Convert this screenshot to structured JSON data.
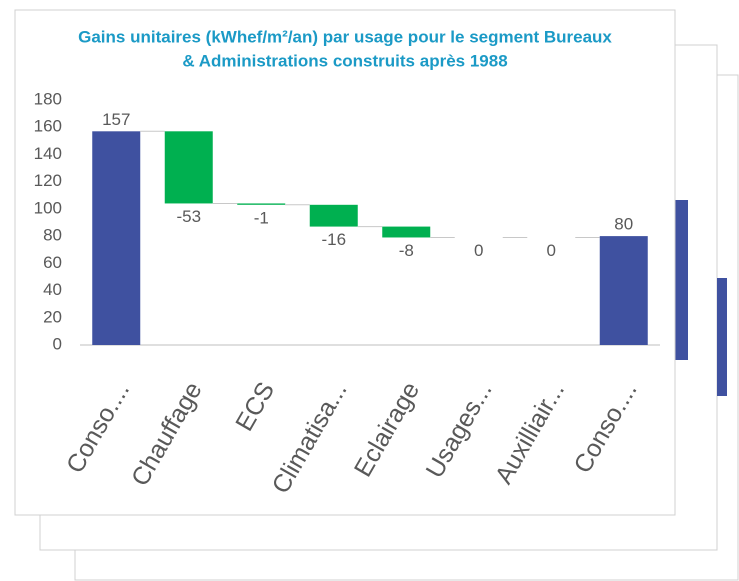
{
  "chart_data": {
    "type": "waterfall",
    "title": [
      "Gains unitaires (kWhef/m²/an) par usage pour le segment Bureaux",
      "& Administrations construits après 1988"
    ],
    "categories": [
      "Conso....",
      "Chauffage",
      "ECS",
      "Climatisa...",
      "Eclairage",
      "Usages...",
      "Auxilliair...",
      "Conso...."
    ],
    "values": [
      157,
      -53,
      -1,
      -16,
      -8,
      0,
      0,
      80
    ],
    "total_color": "#3f51a0",
    "decrease_color": "#00b050",
    "ylim": [
      0,
      180
    ],
    "yticks": [
      0,
      20,
      40,
      60,
      80,
      100,
      120,
      140,
      160,
      180
    ],
    "grid": false
  }
}
